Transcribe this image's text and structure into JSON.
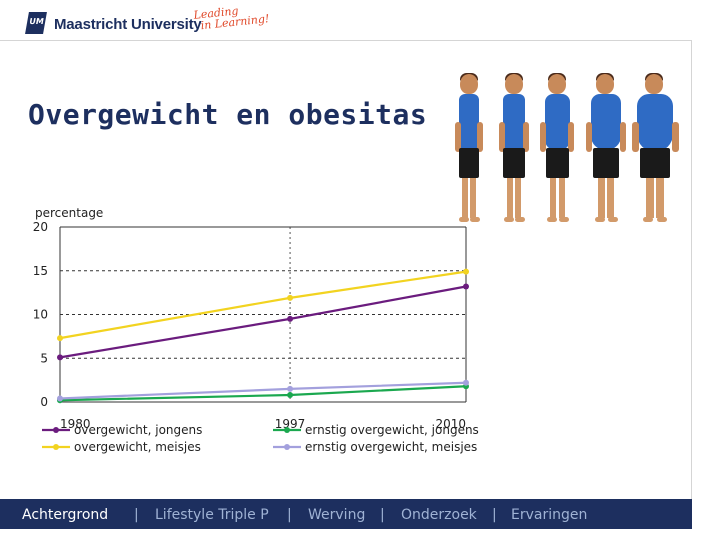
{
  "header": {
    "logo_mark": "UM",
    "university": "Maastricht University",
    "slogan_line1": "Leading",
    "slogan_line2": "in Learning!"
  },
  "slide": {
    "title": "Overgewicht en obesitas"
  },
  "chart_data": {
    "type": "line",
    "ylabel": "percentage",
    "xlabel": "",
    "title": "",
    "x": [
      1980,
      1997,
      2010
    ],
    "xticks": [
      "1980",
      "1997",
      "2010"
    ],
    "yticks": [
      "0",
      "5",
      "10",
      "15",
      "20"
    ],
    "ylim": [
      0,
      20
    ],
    "grid": true,
    "legend_placement": "bottom",
    "series": [
      {
        "name": "overgewicht, jongens",
        "color": "#6b1c7e",
        "values": [
          5.1,
          9.5,
          13.2
        ]
      },
      {
        "name": "ernstig overgewicht, jongens",
        "color": "#1ba84f",
        "values": [
          0.2,
          0.8,
          1.8
        ]
      },
      {
        "name": "overgewicht, meisjes",
        "color": "#f2d320",
        "values": [
          7.3,
          11.9,
          14.9
        ]
      },
      {
        "name": "ernstig overgewicht, meisjes",
        "color": "#a3a0dd",
        "values": [
          0.4,
          1.5,
          2.2
        ]
      }
    ]
  },
  "nav": {
    "items": [
      "Achtergrond",
      "Lifestyle Triple P",
      "Werving",
      "Onderzoek",
      "Ervaringen"
    ],
    "separator": "|"
  },
  "colors": {
    "brand": "#1d2f5f",
    "nav_dim": "#9fb2d4"
  }
}
